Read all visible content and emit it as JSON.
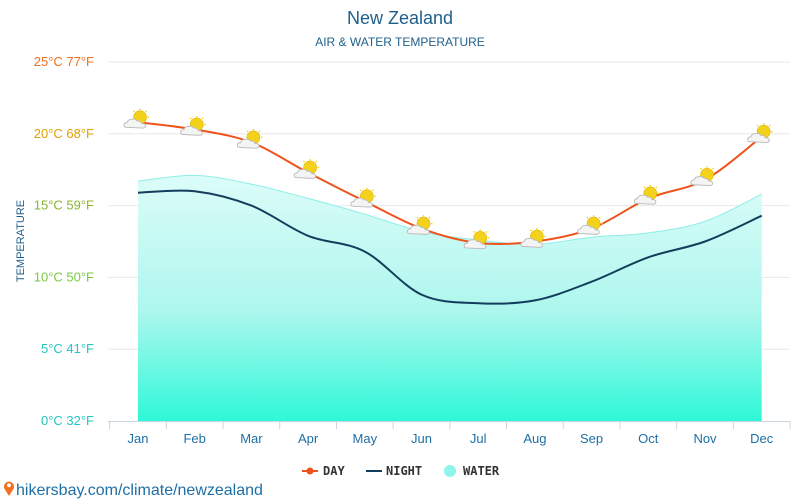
{
  "site": {
    "watermark": "hikersbay.com/climate/newzealand",
    "pin_icon": "location-pin-icon"
  },
  "chart_data": {
    "type": "line",
    "title": "New Zealand",
    "subtitle": "AIR & WATER TEMPERATURE",
    "ylabel": "TEMPERATURE",
    "categories": [
      "Jan",
      "Feb",
      "Mar",
      "Apr",
      "May",
      "Jun",
      "Jul",
      "Aug",
      "Sep",
      "Oct",
      "Nov",
      "Dec"
    ],
    "ylim": [
      0,
      25
    ],
    "yticks": [
      {
        "value": 0,
        "label": "0°C 32°F",
        "color": "#22c7c2"
      },
      {
        "value": 5,
        "label": "5°C 41°F",
        "color": "#22c7c2"
      },
      {
        "value": 10,
        "label": "10°C 50°F",
        "color": "#7ac943"
      },
      {
        "value": 15,
        "label": "15°C 59°F",
        "color": "#8ab531"
      },
      {
        "value": 20,
        "label": "20°C 68°F",
        "color": "#e0a100"
      },
      {
        "value": 25,
        "label": "25°C 77°F",
        "color": "#f07020"
      }
    ],
    "grid": true,
    "legend_position": "bottom-center",
    "weather_icon": "sun-behind-cloud-icon",
    "series": [
      {
        "name": "DAY",
        "color": "#f0521a",
        "values": [
          20.8,
          20.3,
          19.4,
          17.3,
          15.3,
          13.4,
          12.4,
          12.5,
          13.4,
          15.5,
          16.8,
          19.8
        ]
      },
      {
        "name": "NIGHT",
        "color": "#123d5c",
        "values": [
          15.9,
          16.0,
          15.0,
          12.9,
          11.8,
          8.8,
          8.2,
          8.4,
          9.7,
          11.4,
          12.5,
          14.3
        ]
      },
      {
        "name": "WATER",
        "color": "#8ff5ec",
        "values": [
          16.7,
          17.1,
          16.5,
          15.5,
          14.4,
          13.2,
          12.6,
          12.3,
          12.8,
          13.1,
          13.9,
          15.8
        ]
      }
    ]
  }
}
